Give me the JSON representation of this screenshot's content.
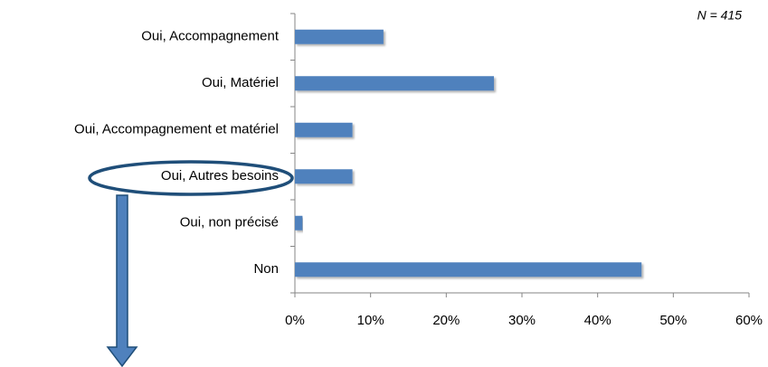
{
  "chart_data": {
    "type": "bar",
    "orientation": "horizontal",
    "annotation": "N = 415",
    "categories": [
      "Oui, Accompagnement",
      "Oui, Matériel",
      "Oui, Accompagnement et matériel",
      "Oui, Autres besoins",
      "Oui, non précisé",
      "Non"
    ],
    "values": [
      11.7,
      26.3,
      7.6,
      7.6,
      1.0,
      45.8
    ],
    "color": "#4f81bd",
    "xlim": [
      0,
      60
    ],
    "xticks": [
      {
        "value": 0,
        "label": "0%"
      },
      {
        "value": 10,
        "label": "10%"
      },
      {
        "value": 20,
        "label": "20%"
      },
      {
        "value": 30,
        "label": "30%"
      },
      {
        "value": 40,
        "label": "40%"
      },
      {
        "value": 50,
        "label": "50%"
      },
      {
        "value": 60,
        "label": "60%"
      }
    ],
    "grid": false
  }
}
